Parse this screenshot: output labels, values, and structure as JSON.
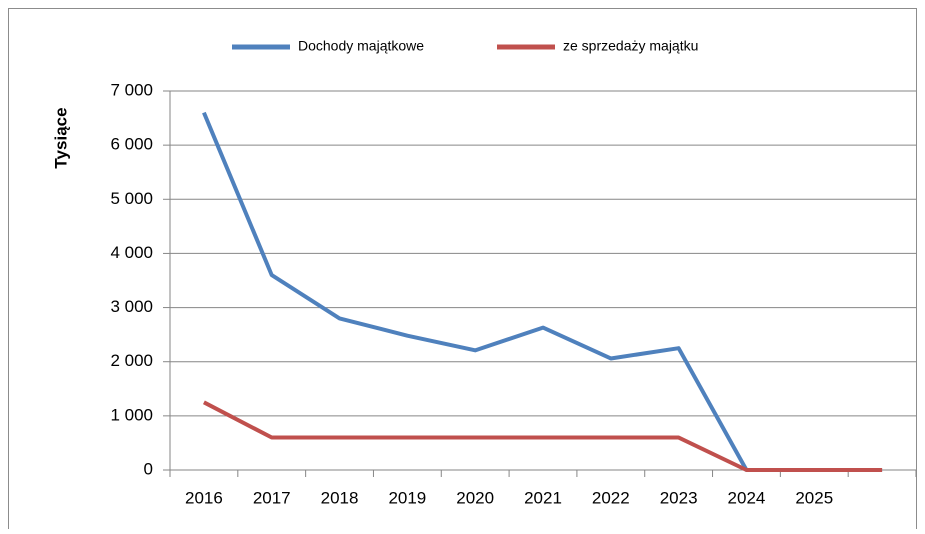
{
  "chart_data": {
    "type": "line",
    "y_label": "Tysiące",
    "categories": [
      "2016",
      "2017",
      "2018",
      "2019",
      "2020",
      "2021",
      "2022",
      "2023",
      "2024",
      "2025",
      null
    ],
    "series": [
      {
        "name": "Dochody majątkowe",
        "color": "#4f81bd",
        "values": [
          6600,
          3600,
          2800,
          2480,
          2210,
          2630,
          2060,
          2250,
          0,
          0,
          0
        ]
      },
      {
        "name": "ze sprzedaży majątku",
        "color": "#c0504d",
        "values": [
          1250,
          600,
          600,
          600,
          600,
          600,
          600,
          600,
          0,
          0,
          0
        ]
      }
    ],
    "ylim": [
      0,
      7000
    ],
    "yticks": [
      0,
      {
        "value": 1000,
        "label": "1 000"
      },
      {
        "value": 2000,
        "label": "2 000"
      },
      {
        "value": 3000,
        "label": "3 000"
      },
      {
        "value": 4000,
        "label": "4 000"
      },
      {
        "value": 5000,
        "label": "5 000"
      },
      {
        "value": 6000,
        "label": "6 000"
      },
      {
        "value": 7000,
        "label": "7 000"
      }
    ],
    "grid": true,
    "legend": "top"
  }
}
